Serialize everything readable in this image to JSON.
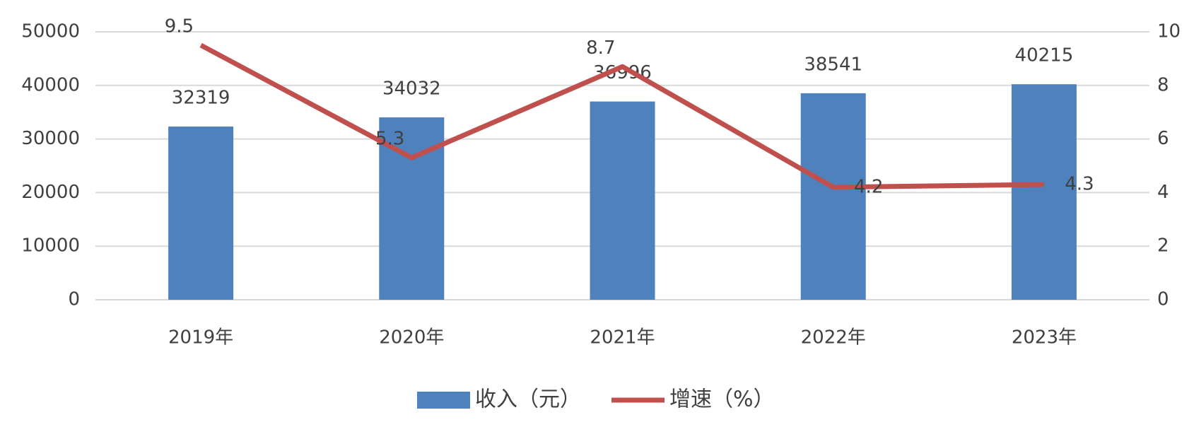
{
  "chart_data": {
    "type": "bar-line",
    "categories": [
      "2019年",
      "2020年",
      "2021年",
      "2022年",
      "2023年"
    ],
    "series": [
      {
        "name": "收入（元）",
        "type": "bar",
        "color": "#4f81bd",
        "values": [
          32319,
          34032,
          36996,
          38541,
          40215
        ]
      },
      {
        "name": "增速（%）",
        "type": "line",
        "axis": "y2",
        "color": "#c0504d",
        "values": [
          9.5,
          5.3,
          8.7,
          4.2,
          4.3
        ]
      }
    ],
    "ylim": [
      0,
      50000
    ],
    "yticks": [
      0,
      10000,
      20000,
      30000,
      40000,
      50000
    ],
    "y2lim": [
      0,
      10
    ],
    "y2ticks": [
      0,
      2,
      4,
      6,
      8,
      10
    ],
    "grid": true,
    "legend": "bottom"
  }
}
